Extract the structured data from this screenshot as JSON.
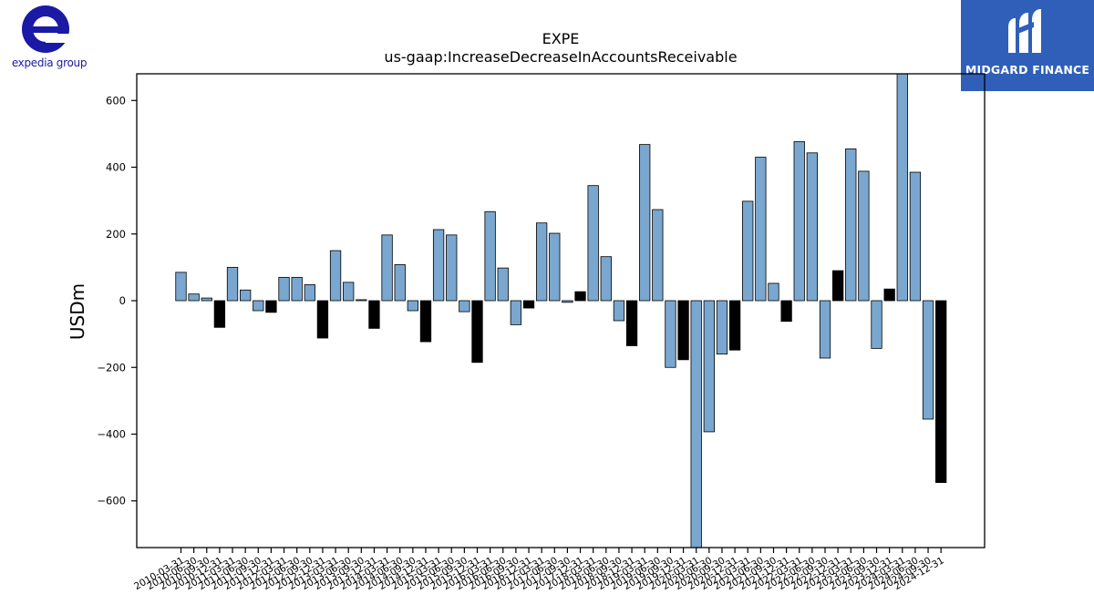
{
  "branding": {
    "left_logo_text": "expedia group",
    "left_logo_color": "#1a1aa6",
    "right_logo_text": "MIDGARD FINANCE",
    "right_logo_bg": "#2f5fb8"
  },
  "colors": {
    "bar_default": "#7aa7cf",
    "bar_highlight": "#000000",
    "bar_edge": "#000000"
  },
  "chart_data": {
    "type": "bar",
    "title": "EXPE",
    "subtitle": "us-gaap:IncreaseDecreaseInAccountsReceivable",
    "xlabel": "",
    "ylabel": "USDm",
    "ylim": [
      -740,
      680
    ],
    "yticks": [
      -600,
      -400,
      -200,
      0,
      200,
      400,
      600
    ],
    "yticklabels": [
      "−600",
      "−400",
      "−200",
      "0",
      "200",
      "400",
      "600"
    ],
    "grid": false,
    "legend": "none",
    "categories": [
      "2010-03-31",
      "2010-06-30",
      "2010-09-30",
      "2010-12-31",
      "2011-03-31",
      "2011-06-30",
      "2011-09-30",
      "2011-12-31",
      "2012-03-31",
      "2012-06-30",
      "2012-09-30",
      "2012-12-31",
      "2013-03-31",
      "2013-06-30",
      "2013-09-30",
      "2013-12-31",
      "2014-03-31",
      "2014-06-30",
      "2014-09-30",
      "2014-12-31",
      "2015-03-31",
      "2015-06-30",
      "2015-09-30",
      "2015-12-31",
      "2016-03-31",
      "2016-06-30",
      "2016-09-30",
      "2016-12-31",
      "2017-03-31",
      "2017-06-30",
      "2017-09-30",
      "2017-12-31",
      "2018-03-31",
      "2018-06-30",
      "2018-09-30",
      "2018-12-31",
      "2019-03-31",
      "2019-06-30",
      "2019-09-30",
      "2019-12-31",
      "2020-03-31",
      "2020-06-30",
      "2020-09-30",
      "2020-12-31",
      "2021-03-31",
      "2021-06-30",
      "2021-09-30",
      "2021-12-31",
      "2022-03-31",
      "2022-06-30",
      "2022-09-30",
      "2022-12-31",
      "2023-03-31",
      "2023-06-30",
      "2023-09-30",
      "2023-12-31",
      "2024-03-31",
      "2024-06-30",
      "2024-09-30",
      "2024-12-31"
    ],
    "values": [
      85,
      20,
      8,
      -80,
      100,
      32,
      -30,
      -35,
      70,
      70,
      48,
      -112,
      150,
      55,
      3,
      -83,
      197,
      108,
      -30,
      -123,
      213,
      197,
      -33,
      -185,
      267,
      98,
      -72,
      -22,
      233,
      202,
      -5,
      27,
      345,
      132,
      -60,
      -135,
      468,
      273,
      -200,
      -177,
      -740,
      -393,
      -160,
      -148,
      298,
      430,
      52,
      -62,
      477,
      443,
      -172,
      90,
      455,
      388,
      -143,
      35,
      680,
      385,
      -355,
      -545
    ],
    "highlight_quarter": "Q4"
  }
}
